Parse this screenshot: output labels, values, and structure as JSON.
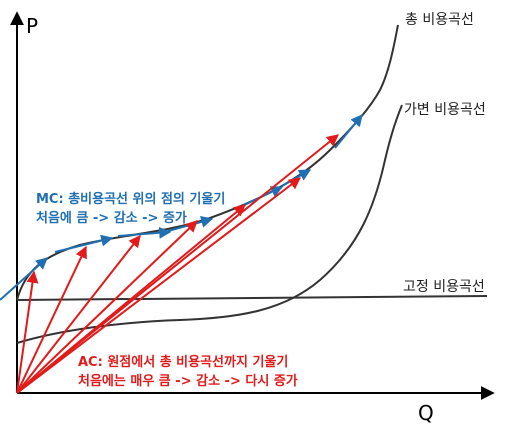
{
  "axes": {
    "y_label": "P",
    "x_label": "Q"
  },
  "curves": {
    "total_cost_label": "총 비용곡선",
    "variable_cost_label": "가변 비용곡선",
    "fixed_cost_label": "고정 비용곡선"
  },
  "mc_annotation": {
    "line1": "MC: 총비용곡선  위의 점의 기울기",
    "line2": "처음에 큼 -> 감소 -> 증가"
  },
  "ac_annotation": {
    "line1": "AC: 원점에서 총 비용곡선까지 기울기",
    "line2": "처음에는 매우 큼 -> 감소 -> 다시 증가"
  },
  "colors": {
    "axis": "#000000",
    "total_cost": "#333333",
    "variable_cost": "#333333",
    "fixed_cost": "#333333",
    "mc_tangent": "#1f6fb2",
    "ac_ray": "#e21a1a"
  }
}
